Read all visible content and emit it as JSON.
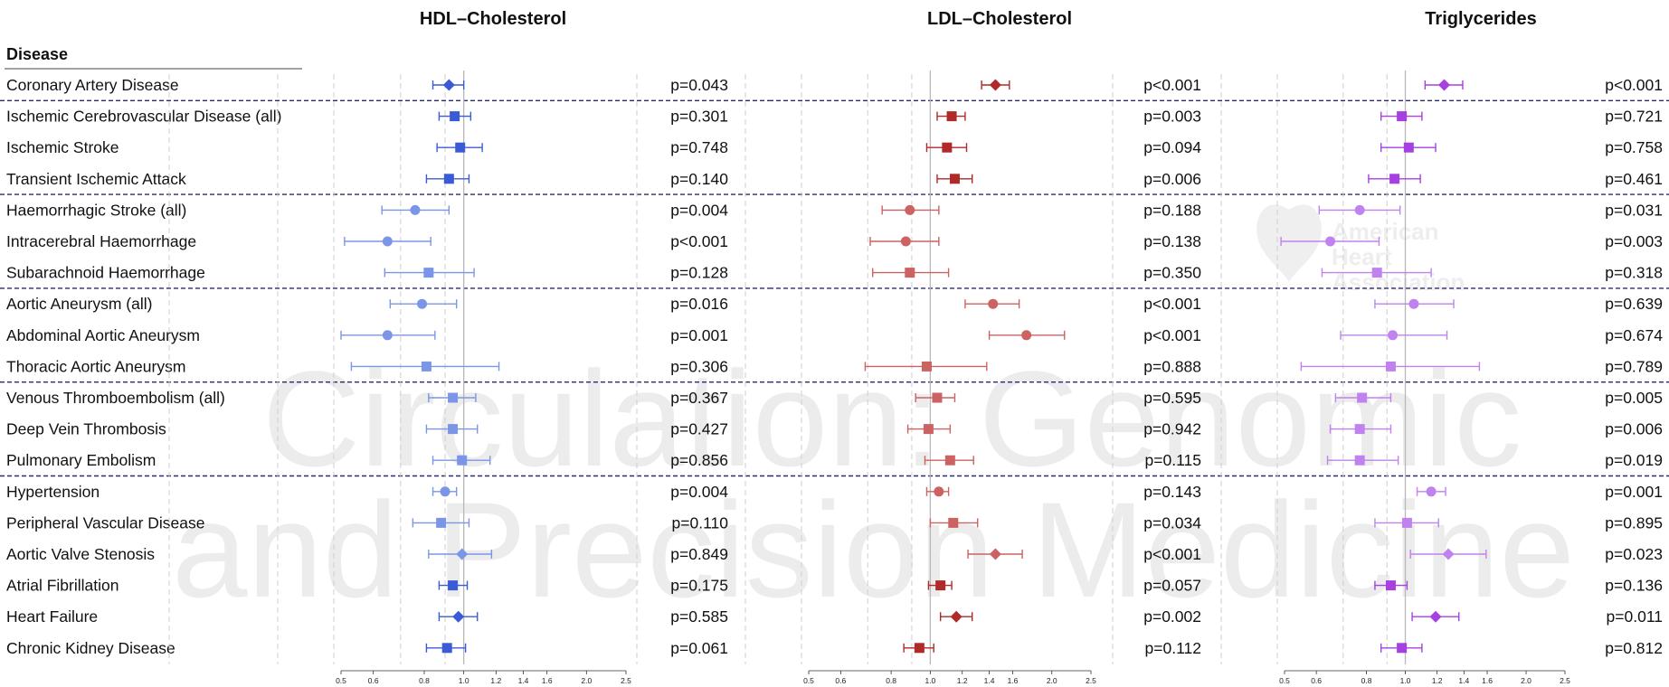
{
  "watermark": {
    "line1": "Circulation: Genomic",
    "line2": "and Precision Medicine",
    "logo_lines": [
      "American",
      "Heart",
      "Association"
    ]
  },
  "table_header": "Disease",
  "colors": {
    "hdl_dark": "#3b5bd6",
    "hdl_light": "#7b96e6",
    "ldl_dark": "#b02a2a",
    "ldl_light": "#cc6262",
    "tg_dark": "#a640e0",
    "tg_light": "#bf82ee",
    "separator": "#2a2a6a"
  },
  "chart_data": {
    "type": "forest",
    "x_scale": "log",
    "xlim": [
      0.5,
      2.5
    ],
    "x_ticks": [
      0.5,
      0.6,
      0.8,
      1.0,
      1.2,
      1.4,
      1.6,
      2.0,
      2.5
    ],
    "x_tick_labels": [
      "0.5",
      "0.6",
      "0.8",
      "1.0",
      "1.2",
      "1.4",
      "1.6",
      "2.0",
      "2.5"
    ],
    "reference_line": 1.0,
    "diseases": [
      "Coronary Artery Disease",
      "Ischemic Cerebrovascular Disease (all)",
      "Ischemic Stroke",
      "Transient Ischemic Attack",
      "Haemorrhagic Stroke (all)",
      "Intracerebral Haemorrhage",
      "Subarachnoid Haemorrhage",
      "Aortic Aneurysm (all)",
      "Abdominal Aortic Aneurysm",
      "Thoracic Aortic Aneurysm",
      "Venous Thromboembolism (all)",
      "Deep Vein Thrombosis",
      "Pulmonary Embolism",
      "Hypertension",
      "Peripheral Vascular Disease",
      "Aortic Valve Stenosis",
      "Atrial Fibrillation",
      "Heart Failure",
      "Chronic Kidney Disease"
    ],
    "marker_shapes": [
      "diamond",
      "square",
      "square",
      "square",
      "circle",
      "circle",
      "square",
      "circle",
      "circle",
      "square",
      "square",
      "square",
      "square",
      "circle",
      "square",
      "diamond",
      "square",
      "diamond",
      "square"
    ],
    "group_separators_after": [
      0,
      3,
      6,
      9,
      12
    ],
    "panels": [
      {
        "title": "HDL–Cholesterol",
        "color_dark": "#3b5bd6",
        "color_light": "#7b96e6",
        "est": [
          0.92,
          0.95,
          0.98,
          0.92,
          0.76,
          0.65,
          0.82,
          0.79,
          0.65,
          0.81,
          0.94,
          0.94,
          0.99,
          0.9,
          0.88,
          0.99,
          0.94,
          0.97,
          0.91
        ],
        "lo": [
          0.84,
          0.87,
          0.86,
          0.81,
          0.63,
          0.51,
          0.64,
          0.66,
          0.5,
          0.53,
          0.82,
          0.81,
          0.84,
          0.84,
          0.75,
          0.82,
          0.87,
          0.87,
          0.81
        ],
        "hi": [
          1.0,
          1.04,
          1.11,
          1.03,
          0.92,
          0.83,
          1.06,
          0.96,
          0.85,
          1.22,
          1.07,
          1.08,
          1.16,
          0.96,
          1.03,
          1.17,
          1.02,
          1.08,
          1.01
        ],
        "light": [
          false,
          false,
          false,
          false,
          true,
          true,
          true,
          true,
          true,
          true,
          true,
          true,
          true,
          true,
          true,
          true,
          false,
          false,
          false
        ],
        "p_values": [
          "p=0.043",
          "p=0.301",
          "p=0.748",
          "p=0.140",
          "p=0.004",
          "p<0.001",
          "p=0.128",
          "p=0.016",
          "p=0.001",
          "p=0.306",
          "p=0.367",
          "p=0.427",
          "p=0.856",
          "p=0.004",
          "p=0.110",
          "p=0.849",
          "p=0.175",
          "p=0.585",
          "p=0.061"
        ]
      },
      {
        "title": "LDL–Cholesterol",
        "color_dark": "#b02a2a",
        "color_light": "#cc6262",
        "est": [
          1.45,
          1.13,
          1.1,
          1.15,
          0.89,
          0.87,
          0.89,
          1.43,
          1.73,
          0.98,
          1.04,
          0.99,
          1.12,
          1.05,
          1.14,
          1.45,
          1.06,
          1.16,
          0.94
        ],
        "lo": [
          1.34,
          1.04,
          0.98,
          1.04,
          0.76,
          0.71,
          0.72,
          1.22,
          1.4,
          0.69,
          0.92,
          0.88,
          0.97,
          0.98,
          1.0,
          1.24,
          0.99,
          1.06,
          0.86
        ],
        "hi": [
          1.57,
          1.22,
          1.23,
          1.27,
          1.05,
          1.05,
          1.11,
          1.66,
          2.15,
          1.38,
          1.15,
          1.12,
          1.28,
          1.11,
          1.31,
          1.69,
          1.13,
          1.27,
          1.02
        ],
        "light": [
          false,
          false,
          false,
          false,
          true,
          true,
          true,
          true,
          true,
          true,
          true,
          true,
          true,
          true,
          true,
          true,
          false,
          false,
          false
        ],
        "p_values": [
          "p<0.001",
          "p=0.003",
          "p=0.094",
          "p=0.006",
          "p=0.188",
          "p=0.138",
          "p=0.350",
          "p<0.001",
          "p<0.001",
          "p=0.888",
          "p=0.595",
          "p=0.942",
          "p=0.115",
          "p=0.143",
          "p=0.034",
          "p<0.001",
          "p=0.057",
          "p=0.002",
          "p=0.112"
        ]
      },
      {
        "title": "Triglycerides",
        "color_dark": "#a640e0",
        "color_light": "#bf82ee",
        "est": [
          1.25,
          0.98,
          1.02,
          0.94,
          0.77,
          0.65,
          0.85,
          1.05,
          0.93,
          0.92,
          0.78,
          0.77,
          0.77,
          1.16,
          1.01,
          1.28,
          0.92,
          1.19,
          0.98
        ],
        "lo": [
          1.12,
          0.87,
          0.87,
          0.81,
          0.61,
          0.49,
          0.62,
          0.84,
          0.69,
          0.55,
          0.67,
          0.65,
          0.64,
          1.07,
          0.84,
          1.03,
          0.84,
          1.04,
          0.87
        ],
        "hi": [
          1.39,
          1.1,
          1.19,
          1.09,
          0.97,
          0.86,
          1.16,
          1.32,
          1.27,
          1.53,
          0.92,
          0.92,
          0.96,
          1.26,
          1.21,
          1.59,
          1.01,
          1.36,
          1.1
        ],
        "light": [
          false,
          false,
          false,
          false,
          true,
          true,
          true,
          true,
          true,
          true,
          true,
          true,
          true,
          true,
          true,
          true,
          false,
          false,
          false
        ],
        "p_values": [
          "p<0.001",
          "p=0.721",
          "p=0.758",
          "p=0.461",
          "p=0.031",
          "p=0.003",
          "p=0.318",
          "p=0.639",
          "p=0.674",
          "p=0.789",
          "p=0.005",
          "p=0.006",
          "p=0.019",
          "p=0.001",
          "p=0.895",
          "p=0.023",
          "p=0.136",
          "p=0.011",
          "p=0.812"
        ]
      }
    ]
  }
}
